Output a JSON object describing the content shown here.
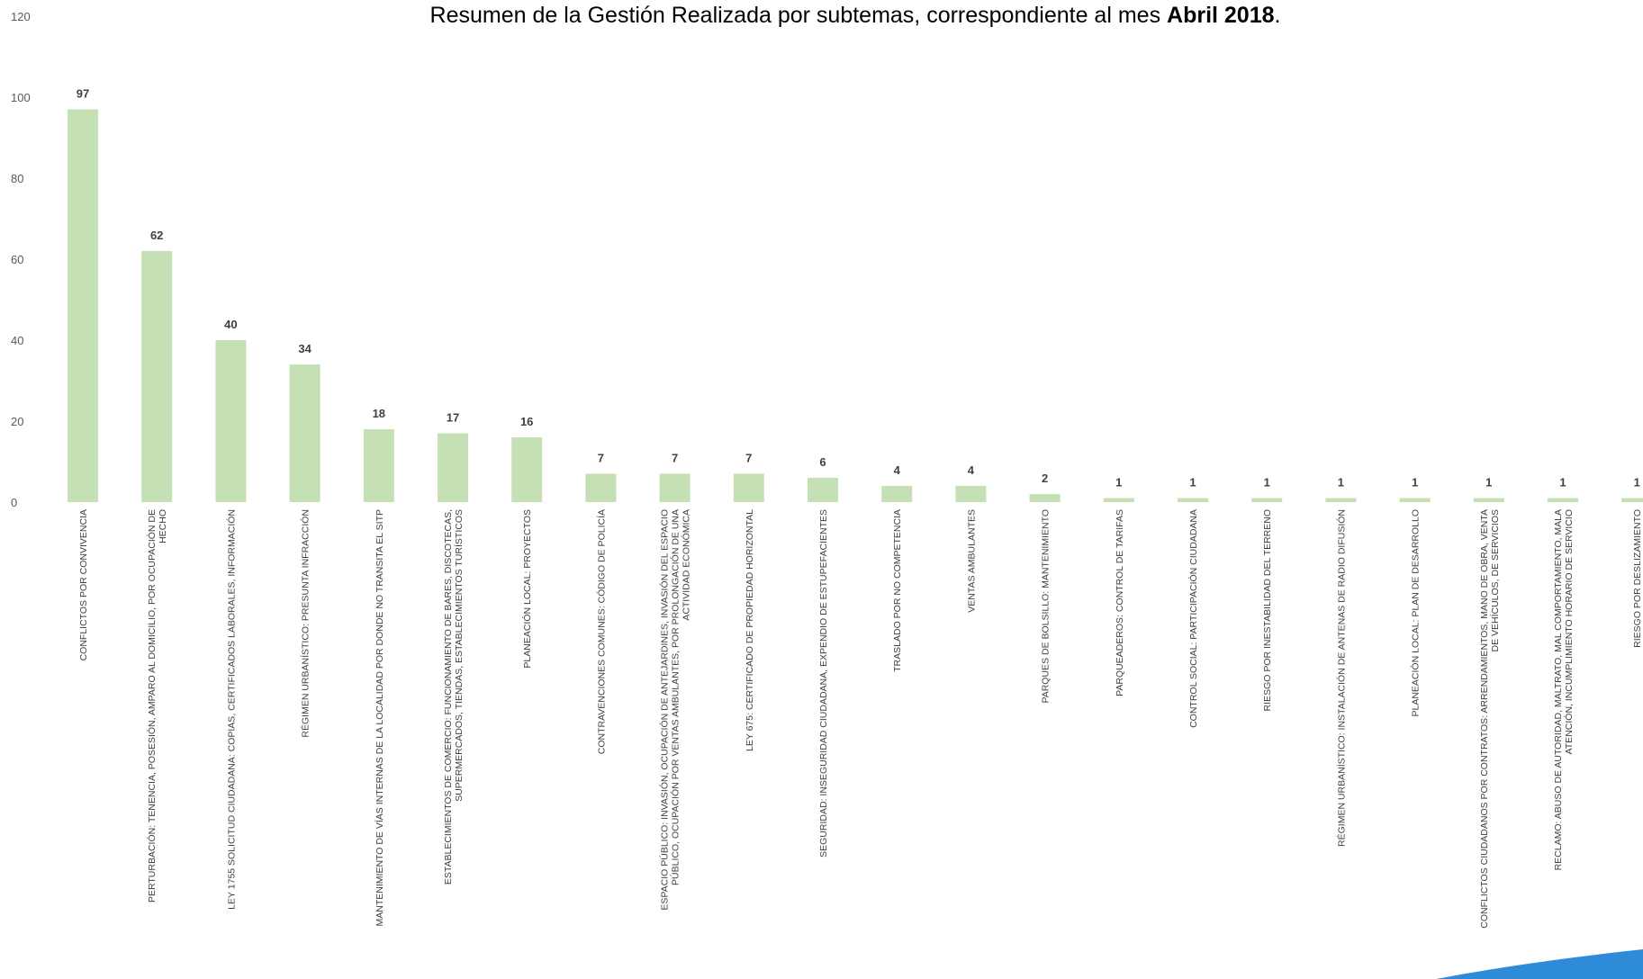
{
  "chart_data": {
    "type": "bar",
    "title_main": "Resumen de  la Gestión Realizada por subtemas, correspondiente al mes ",
    "title_bold": "Abril 2018",
    "title_tail": ".",
    "ylim": [
      0,
      120
    ],
    "yticks": [
      0,
      20,
      40,
      60,
      80,
      100,
      120
    ],
    "grid": false,
    "bar_color": "#c5e0b4",
    "decoration_color": "#2e8bd8",
    "categories": [
      [
        "CONFLICTOS POR CONVIVENCIA"
      ],
      [
        "PERTURBACIÓN: TENENCIA, POSESIÓN, AMPARO AL DOMICILIO, POR OCUPACIÓN DE",
        "HECHO"
      ],
      [
        "LEY 1755 SOLICITUD CIUDADANA: COPIAS, CERTIFICADOS LABORALES, INFORMACIÓN"
      ],
      [
        "RÉGIMEN URBANÍSTICO: PRESUNTA INFRACCIÓN"
      ],
      [
        "MANTENIMIENTO DE VÍAS INTERNAS DE LA LOCALIDAD POR DONDE NO TRANSITA EL SITP"
      ],
      [
        "ESTABLECIMIENTOS DE COMERCIO: FUNCIONAMIENTO DE BARES, DISCOTECAS,",
        "SUPERMERCADOS, TIENDAS, ESTABLECIMIENTOS TURÍSTICOS"
      ],
      [
        "PLANEACIÓN LOCAL: PROYECTOS"
      ],
      [
        "CONTRAVENCIONES COMUNES: CÓDIGO DE POLICÍA"
      ],
      [
        "ESPACIO PÚBLICO: INVASIÓN, OCUPACIÓN DE ANTEJARDINES, INVASIÓN DEL ESPACIO",
        "PÚBLICO, OCUPACIÓN POR VENTAS AMBULANTES, POR PROLONGACIÓN DE UNA",
        "ACTIVIDAD ECONÓMICA"
      ],
      [
        "LEY 675: CERTIFICADO DE PROPIEDAD HORIZONTAL"
      ],
      [
        "SEGURIDAD: INSEGURIDAD CIUDADANA, EXPENDIO DE ESTUPEFACIENTES"
      ],
      [
        "TRASLADO POR NO COMPETENCIA"
      ],
      [
        "VENTAS AMBULANTES"
      ],
      [
        "PARQUES DE BOLSILLO: MANTENIMIENTO"
      ],
      [
        "PARQUEADEROS: CONTROL DE TARIFAS"
      ],
      [
        "CONTROL SOCIAL: PARTICIPACIÓN CIUDADANA"
      ],
      [
        "RIESGO POR INESTABILIDAD DEL TERRENO"
      ],
      [
        "RÉGIMEN URBANÍSTICO: INSTALACIÓN DE ANTENAS DE RADIO DIFUSIÓN"
      ],
      [
        "PLANEACIÓN LOCAL: PLAN DE DESARROLLO"
      ],
      [
        "CONFLICTOS CIUDADANOS POR CONTRATOS: ARRENDAMIENTOS, MANO DE OBRA, VENTA",
        "DE VEHÍCULOS, DE SERVICIOS"
      ],
      [
        "RECLAMO: ABUSO DE AUTORIDAD, MALTRATO, MAL COMPORTAMIENTO, MALA",
        "ATENCIÓN, INCUMPLIMIENTO HORARIO DE SERVICIO"
      ],
      [
        "RIESGO POR DESLIZAMIENTO"
      ]
    ],
    "values": [
      97,
      62,
      40,
      34,
      18,
      17,
      16,
      7,
      7,
      7,
      6,
      4,
      4,
      2,
      1,
      1,
      1,
      1,
      1,
      1,
      1,
      1
    ]
  }
}
